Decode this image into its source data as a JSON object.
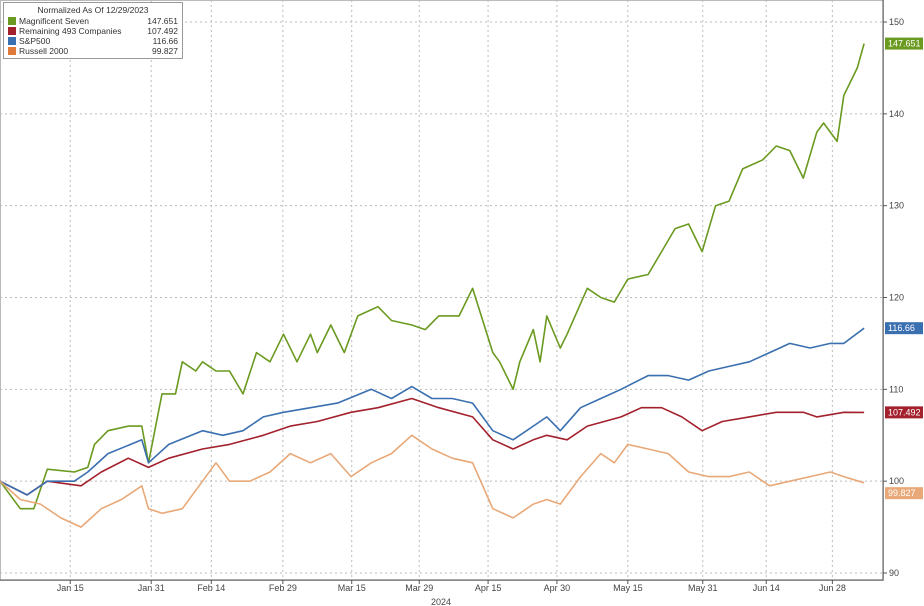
{
  "chart_data": {
    "type": "line",
    "title": "Normalized As Of 12/29/2023",
    "xlabel": "2024",
    "ylabel": "",
    "x_unit": "trading sessions since 12/29/2023",
    "xlim": [
      0,
      130.8
    ],
    "ylim": [
      90,
      150
    ],
    "yticks": [
      90,
      100,
      110,
      120,
      130,
      140,
      150
    ],
    "xticks": [
      {
        "label": "Jan 15",
        "x": 10.4
      },
      {
        "label": "Jan 31",
        "x": 22.4
      },
      {
        "label": "Feb 14",
        "x": 31.3
      },
      {
        "label": "Feb 29",
        "x": 41.9
      },
      {
        "label": "Mar 15",
        "x": 52.1
      },
      {
        "label": "Mar 29",
        "x": 62.1
      },
      {
        "label": "Apr 15",
        "x": 72.3
      },
      {
        "label": "Apr 30",
        "x": 82.5
      },
      {
        "label": "May 15",
        "x": 93
      },
      {
        "label": "May 31",
        "x": 104.1
      },
      {
        "label": "Jun 14",
        "x": 113.5
      },
      {
        "label": "Jun 28",
        "x": 123.3
      }
    ],
    "grid": true,
    "legend_position": "top-left",
    "series": [
      {
        "name": "Magnificent Seven",
        "last": "147.651",
        "color": "#6a9a1f",
        "x": [
          0,
          3,
          5,
          7,
          11,
          13,
          14,
          16,
          19,
          21,
          22,
          24,
          26,
          27,
          29,
          30,
          32,
          34,
          36,
          38,
          40,
          42,
          44,
          46,
          47,
          49,
          51,
          53,
          56,
          58,
          61,
          63,
          65,
          68,
          70,
          73,
          74,
          76,
          77,
          79,
          80,
          81,
          83,
          84,
          87,
          89,
          91,
          93,
          96,
          98,
          100,
          102,
          104,
          106,
          108,
          110,
          113,
          115,
          117,
          119,
          121,
          122,
          124,
          125,
          127,
          128
        ],
        "y": [
          100,
          97,
          97,
          101.3,
          101,
          101.5,
          104,
          105.5,
          106,
          106,
          102,
          109.5,
          109.5,
          113,
          112,
          113,
          112,
          112,
          109.5,
          114,
          113,
          116,
          113,
          116,
          114,
          117,
          114,
          118,
          119,
          117.5,
          117,
          116.5,
          118,
          118,
          121,
          114,
          113,
          110,
          113,
          116.5,
          113,
          118,
          114.5,
          116,
          121,
          120,
          119.5,
          122,
          122.5,
          125,
          127.5,
          128,
          125,
          130,
          130.5,
          134,
          135,
          136.5,
          136,
          133,
          138,
          139,
          137,
          142,
          145,
          147.651
        ]
      },
      {
        "name": "Remaining 493 Companies",
        "last": "107.492",
        "color": "#a3212c",
        "x": [
          0,
          4,
          7,
          12,
          15,
          19,
          22,
          25,
          30,
          34,
          39,
          43,
          47,
          52,
          56,
          61,
          65,
          70,
          73,
          76,
          79,
          81,
          84,
          87,
          92,
          95,
          98,
          101,
          104,
          107,
          111,
          115,
          119,
          121,
          125,
          128
        ],
        "y": [
          100,
          98.5,
          100,
          99.5,
          101,
          102.5,
          101.5,
          102.5,
          103.5,
          104,
          105,
          106,
          106.5,
          107.5,
          108,
          109,
          108,
          107,
          104.5,
          103.5,
          104.5,
          105,
          104.5,
          106,
          107,
          108,
          108,
          107,
          105.5,
          106.5,
          107,
          107.5,
          107.5,
          107,
          107.5,
          107.492
        ]
      },
      {
        "name": "S&P500",
        "last": "116.66",
        "color": "#3a6fb0",
        "x": [
          0,
          4,
          7,
          11,
          13,
          16,
          21,
          22,
          25,
          30,
          33,
          36,
          39,
          42,
          46,
          50,
          55,
          58,
          61,
          64,
          67,
          70,
          73,
          76,
          79,
          81,
          83,
          86,
          89,
          92,
          96,
          99,
          102,
          105,
          108,
          111,
          114,
          117,
          120,
          123,
          125,
          128
        ],
        "y": [
          100,
          98.5,
          100,
          100,
          101,
          103,
          104.5,
          102,
          104,
          105.5,
          105,
          105.5,
          107,
          107.5,
          108,
          108.5,
          110,
          109,
          110.3,
          109,
          109,
          108.5,
          105.5,
          104.5,
          106,
          107,
          105.5,
          108,
          109,
          110,
          111.5,
          111.5,
          111,
          112,
          112.5,
          113,
          114,
          115,
          114.5,
          115,
          115,
          116.66
        ]
      },
      {
        "name": "Russell 2000",
        "last": "99.827",
        "color": "#e8a877",
        "x": [
          0,
          3,
          6,
          9,
          12,
          15,
          18,
          21,
          22,
          24,
          27,
          30,
          32,
          34,
          37,
          40,
          43,
          46,
          49,
          52,
          55,
          58,
          61,
          64,
          67,
          70,
          73,
          76,
          79,
          81,
          83,
          86,
          89,
          91,
          93,
          96,
          99,
          102,
          105,
          108,
          111,
          114,
          117,
          120,
          123,
          125,
          128
        ],
        "y": [
          100,
          98,
          97.5,
          96,
          95,
          97,
          98,
          99.5,
          97,
          96.5,
          97,
          100,
          102,
          100,
          100,
          101,
          103,
          102,
          103,
          100.5,
          102,
          103,
          105,
          103.5,
          102.5,
          102,
          97,
          96,
          97.5,
          98,
          97.5,
          100.5,
          103,
          102,
          104,
          103.5,
          103,
          101,
          100.5,
          100.5,
          101,
          99.5,
          100,
          100.5,
          101,
          100.5,
          99.827
        ]
      }
    ]
  }
}
